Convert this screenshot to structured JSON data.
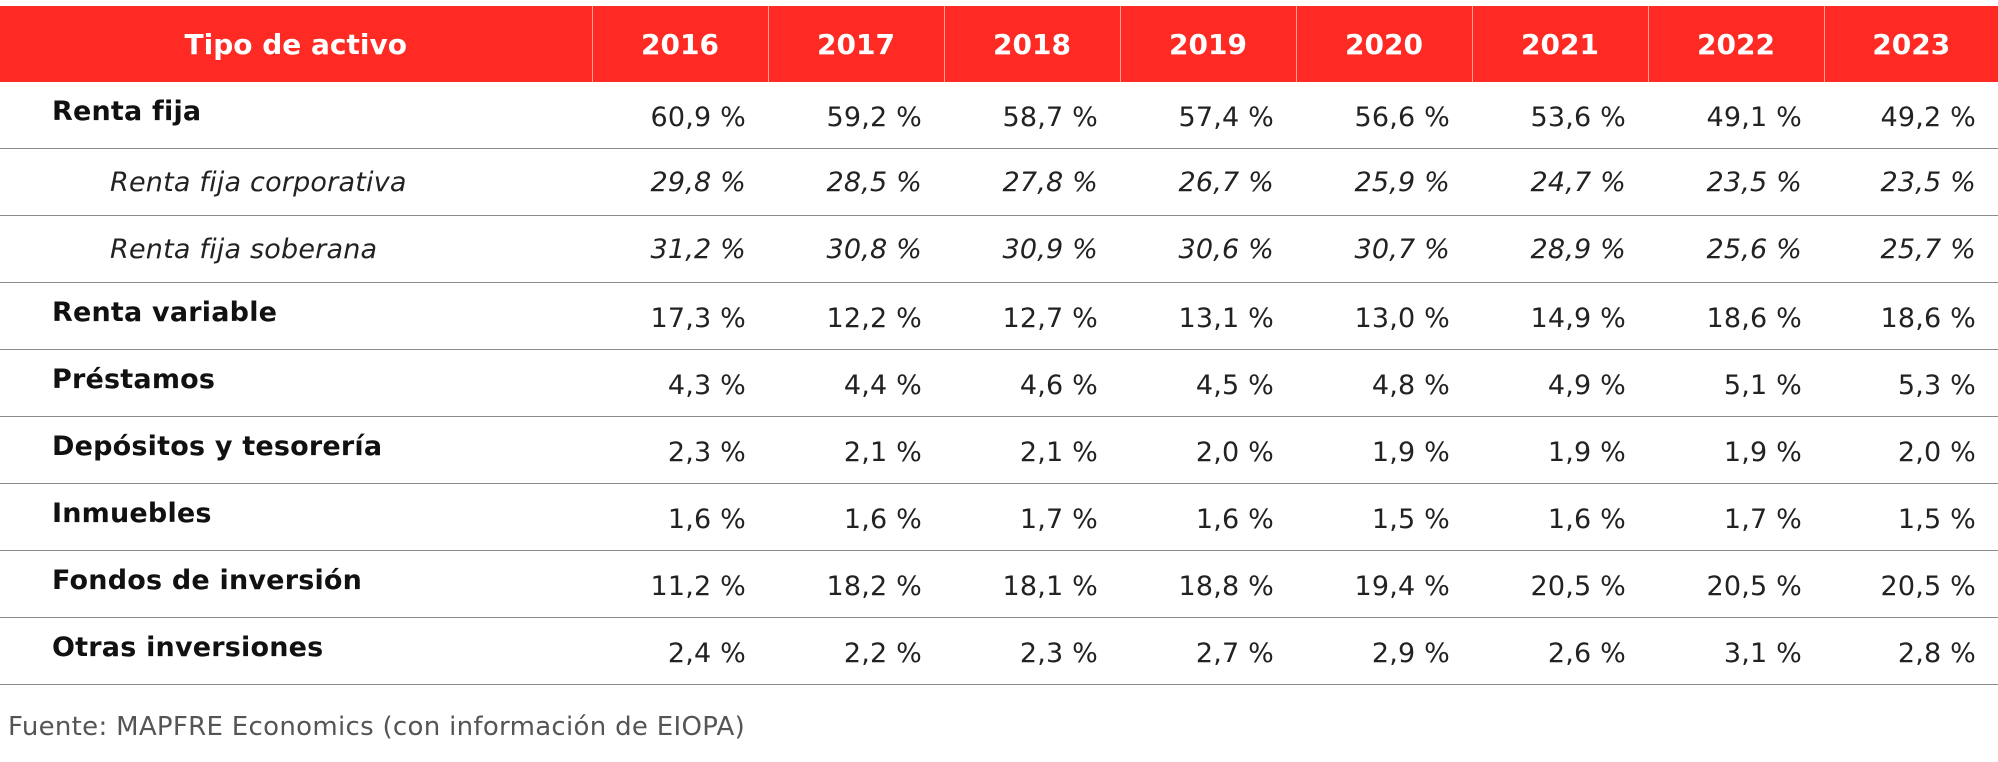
{
  "table": {
    "header": {
      "label": "Tipo de activo",
      "years": [
        "2016",
        "2017",
        "2018",
        "2019",
        "2020",
        "2021",
        "2022",
        "2023"
      ]
    },
    "rows": [
      {
        "label": "Renta fija",
        "kind": "main",
        "values": [
          "60,9 %",
          "59,2 %",
          "58,7 %",
          "57,4 %",
          "56,6 %",
          "53,6 %",
          "49,1 %",
          "49,2 %"
        ]
      },
      {
        "label": "Renta fija corporativa",
        "kind": "sub",
        "values": [
          "29,8 %",
          "28,5 %",
          "27,8 %",
          "26,7 %",
          "25,9 %",
          "24,7 %",
          "23,5 %",
          "23,5 %"
        ]
      },
      {
        "label": "Renta fija soberana",
        "kind": "sub",
        "values": [
          "31,2 %",
          "30,8 %",
          "30,9 %",
          "30,6 %",
          "30,7 %",
          "28,9 %",
          "25,6 %",
          "25,7 %"
        ]
      },
      {
        "label": "Renta variable",
        "kind": "main",
        "values": [
          "17,3 %",
          "12,2 %",
          "12,7 %",
          "13,1 %",
          "13,0 %",
          "14,9 %",
          "18,6 %",
          "18,6 %"
        ]
      },
      {
        "label": "Préstamos",
        "kind": "main",
        "values": [
          "4,3 %",
          "4,4 %",
          "4,6 %",
          "4,5 %",
          "4,8 %",
          "4,9 %",
          "5,1 %",
          "5,3 %"
        ]
      },
      {
        "label": "Depósitos y tesorería",
        "kind": "main",
        "values": [
          "2,3 %",
          "2,1 %",
          "2,1 %",
          "2,0 %",
          "1,9 %",
          "1,9 %",
          "1,9 %",
          "2,0 %"
        ]
      },
      {
        "label": "Inmuebles",
        "kind": "main",
        "values": [
          "1,6 %",
          "1,6 %",
          "1,7 %",
          "1,6 %",
          "1,5 %",
          "1,6 %",
          "1,7 %",
          "1,5 %"
        ]
      },
      {
        "label": "Fondos de inversión",
        "kind": "main",
        "values": [
          "11,2 %",
          "18,2 %",
          "18,1 %",
          "18,8 %",
          "19,4 %",
          "20,5 %",
          "20,5 %",
          "20,5 %"
        ]
      },
      {
        "label": "Otras inversiones",
        "kind": "main",
        "values": [
          "2,4 %",
          "2,2 %",
          "2,3 %",
          "2,7 %",
          "2,9 %",
          "2,6 %",
          "3,1 %",
          "2,8 %"
        ]
      }
    ]
  },
  "source": "Fuente: MAPFRE Economics (con información de EIOPA)",
  "colors": {
    "header_background": "#ff2a23",
    "header_text": "#ffffff",
    "row_divider": "#8a8a8a",
    "source_text": "#555555"
  }
}
